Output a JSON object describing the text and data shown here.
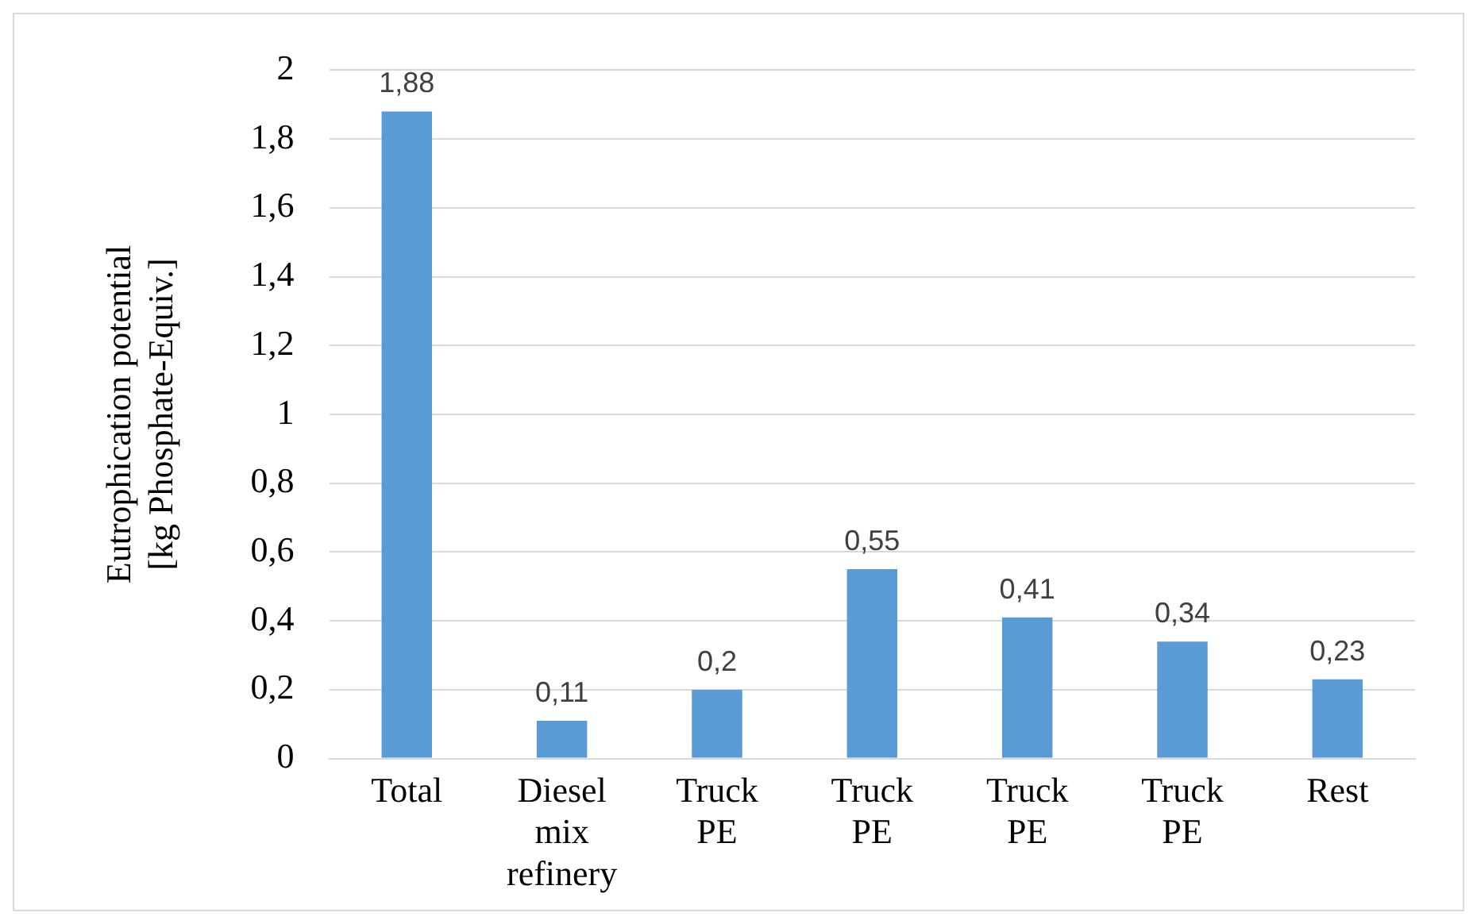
{
  "chart_data": {
    "type": "bar",
    "ylabel": "Eutrophication potential\n[kg Phosphate-Equiv.]",
    "categories": [
      "Total",
      "Diesel mix refinery",
      "Truck PE",
      "Truck PE",
      "Truck PE",
      "Truck PE",
      "Rest"
    ],
    "values": [
      1.88,
      0.11,
      0.2,
      0.55,
      0.41,
      0.34,
      0.23
    ],
    "value_labels": [
      "1,88",
      "0,11",
      "0,2",
      "0,55",
      "0,41",
      "0,34",
      "0,23"
    ],
    "color": "#5b9bd5",
    "ylim": [
      0,
      2
    ],
    "yticks": [
      0,
      {
        "value": 0.2,
        "label": "0,2"
      },
      {
        "value": 0.4,
        "label": "0,4"
      },
      {
        "value": 0.6,
        "label": "0,6"
      },
      {
        "value": 0.8,
        "label": "0,8"
      },
      1,
      {
        "value": 1.2,
        "label": "1,2"
      },
      {
        "value": 1.4,
        "label": "1,4"
      },
      {
        "value": 1.6,
        "label": "1,6"
      },
      {
        "value": 1.8,
        "label": "1,8"
      },
      2
    ],
    "grid": "y",
    "legend": false
  }
}
